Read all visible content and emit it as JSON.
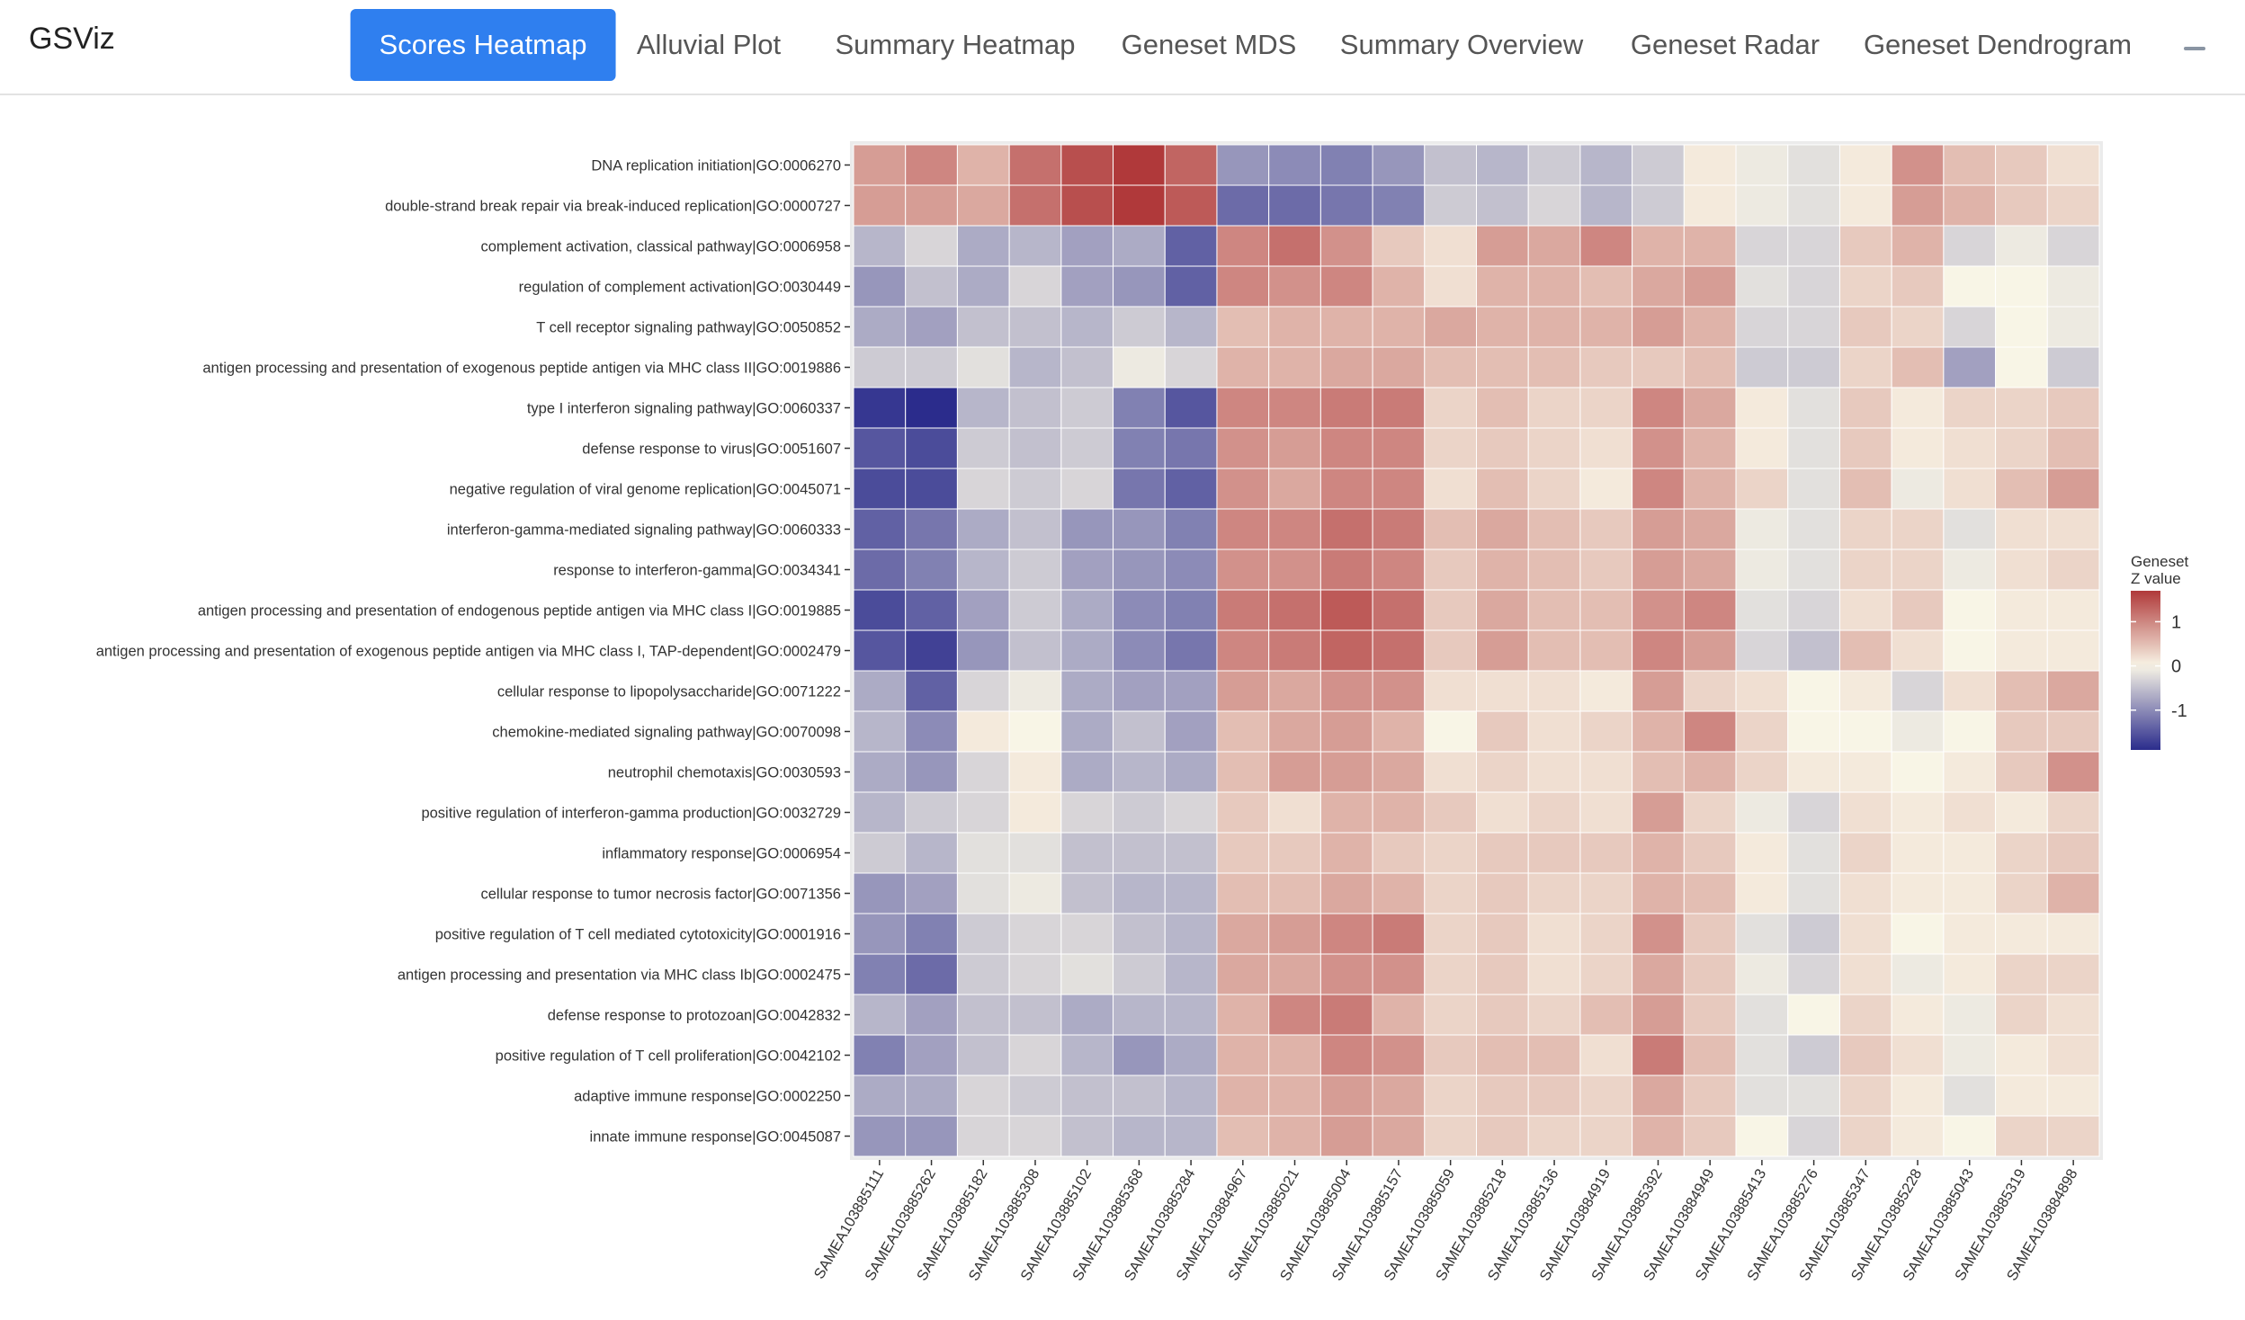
{
  "nav": {
    "brand": "GSViz",
    "tabs": [
      "Scores Heatmap",
      "Alluvial Plot",
      "Summary Heatmap",
      "Geneset MDS",
      "Summary Overview",
      "Geneset Radar",
      "Geneset Dendrogram"
    ],
    "active": 0
  },
  "chart_data": {
    "type": "heatmap",
    "y_categories": [
      "DNA replication initiation|GO:0006270",
      "double-strand break repair via break-induced replication|GO:0000727",
      "complement activation, classical pathway|GO:0006958",
      "regulation of complement activation|GO:0030449",
      "T cell receptor signaling pathway|GO:0050852",
      "antigen processing and presentation of exogenous peptide antigen via MHC class II|GO:0019886",
      "type I interferon signaling pathway|GO:0060337",
      "defense response to virus|GO:0051607",
      "negative regulation of viral genome replication|GO:0045071",
      "interferon-gamma-mediated signaling pathway|GO:0060333",
      "response to interferon-gamma|GO:0034341",
      "antigen processing and presentation of endogenous peptide antigen via MHC class I|GO:0019885",
      "antigen processing and presentation of exogenous peptide antigen via MHC class I, TAP-dependent|GO:0002479",
      "cellular response to lipopolysaccharide|GO:0071222",
      "chemokine-mediated signaling pathway|GO:0070098",
      "neutrophil chemotaxis|GO:0030593",
      "positive regulation of interferon-gamma production|GO:0032729",
      "inflammatory response|GO:0006954",
      "cellular response to tumor necrosis factor|GO:0071356",
      "positive regulation of T cell mediated cytotoxicity|GO:0001916",
      "antigen processing and presentation via MHC class Ib|GO:0002475",
      "defense response to protozoan|GO:0042832",
      "positive regulation of T cell proliferation|GO:0042102",
      "adaptive immune response|GO:0002250",
      "innate immune response|GO:0045087"
    ],
    "x_categories": [
      "SAMEA103885111",
      "SAMEA103885262",
      "SAMEA103885182",
      "SAMEA103885308",
      "SAMEA103885102",
      "SAMEA103885368",
      "SAMEA103885284",
      "SAMEA103884967",
      "SAMEA103885021",
      "SAMEA103885004",
      "SAMEA103885157",
      "SAMEA103885059",
      "SAMEA103885218",
      "SAMEA103885136",
      "SAMEA103884919",
      "SAMEA103885392",
      "SAMEA103884949",
      "SAMEA103885413",
      "SAMEA103885276",
      "SAMEA103885347",
      "SAMEA103885228",
      "SAMEA103885043",
      "SAMEA103885319",
      "SAMEA103884898"
    ],
    "values": [
      [
        0.8,
        1.0,
        0.6,
        1.2,
        1.5,
        1.7,
        1.3,
        -0.9,
        -1.0,
        -1.1,
        -0.9,
        -0.5,
        -0.6,
        -0.4,
        -0.6,
        -0.4,
        0.1,
        -0.1,
        -0.2,
        0.1,
        0.9,
        0.5,
        0.4,
        0.2
      ],
      [
        0.8,
        0.8,
        0.7,
        1.2,
        1.5,
        1.7,
        1.4,
        -1.3,
        -1.3,
        -1.2,
        -1.1,
        -0.4,
        -0.5,
        -0.3,
        -0.6,
        -0.4,
        0.1,
        -0.1,
        -0.2,
        0.1,
        0.8,
        0.6,
        0.4,
        0.3
      ],
      [
        -0.6,
        -0.3,
        -0.7,
        -0.6,
        -0.8,
        -0.7,
        -1.4,
        1.0,
        1.2,
        0.9,
        0.4,
        0.2,
        0.8,
        0.7,
        1.0,
        0.6,
        0.6,
        -0.3,
        -0.3,
        0.4,
        0.6,
        -0.3,
        -0.1,
        -0.3
      ],
      [
        -0.9,
        -0.5,
        -0.7,
        -0.3,
        -0.8,
        -0.9,
        -1.4,
        1.0,
        0.9,
        1.0,
        0.6,
        0.2,
        0.6,
        0.6,
        0.5,
        0.7,
        0.8,
        -0.2,
        -0.3,
        0.3,
        0.4,
        0.0,
        0.0,
        -0.1
      ],
      [
        -0.7,
        -0.8,
        -0.5,
        -0.5,
        -0.6,
        -0.4,
        -0.6,
        0.5,
        0.6,
        0.6,
        0.6,
        0.7,
        0.6,
        0.6,
        0.6,
        0.8,
        0.6,
        -0.3,
        -0.3,
        0.4,
        0.3,
        -0.3,
        0.0,
        -0.1
      ],
      [
        -0.4,
        -0.4,
        -0.2,
        -0.6,
        -0.5,
        -0.1,
        -0.3,
        0.6,
        0.6,
        0.7,
        0.7,
        0.5,
        0.5,
        0.5,
        0.4,
        0.4,
        0.5,
        -0.4,
        -0.4,
        0.3,
        0.5,
        -0.8,
        0.0,
        -0.4
      ],
      [
        -1.8,
        -2.0,
        -0.6,
        -0.5,
        -0.4,
        -1.1,
        -1.5,
        1.0,
        1.0,
        1.1,
        1.1,
        0.3,
        0.5,
        0.3,
        0.3,
        1.0,
        0.7,
        0.1,
        -0.2,
        0.4,
        0.1,
        0.3,
        0.3,
        0.4
      ],
      [
        -1.5,
        -1.6,
        -0.4,
        -0.5,
        -0.4,
        -1.1,
        -1.2,
        0.9,
        0.8,
        1.0,
        1.0,
        0.3,
        0.4,
        0.3,
        0.2,
        0.9,
        0.6,
        0.1,
        -0.2,
        0.4,
        0.1,
        0.2,
        0.3,
        0.5
      ],
      [
        -1.6,
        -1.6,
        -0.3,
        -0.4,
        -0.3,
        -1.2,
        -1.4,
        0.9,
        0.7,
        1.0,
        1.0,
        0.2,
        0.5,
        0.3,
        0.1,
        1.0,
        0.6,
        0.3,
        -0.2,
        0.5,
        -0.1,
        0.2,
        0.5,
        0.8
      ],
      [
        -1.4,
        -1.2,
        -0.7,
        -0.5,
        -0.9,
        -0.9,
        -1.1,
        1.0,
        1.0,
        1.2,
        1.1,
        0.5,
        0.7,
        0.5,
        0.4,
        0.8,
        0.7,
        -0.1,
        -0.2,
        0.3,
        0.3,
        -0.2,
        0.2,
        0.2
      ],
      [
        -1.3,
        -1.1,
        -0.6,
        -0.4,
        -0.8,
        -0.9,
        -1.0,
        0.9,
        0.9,
        1.1,
        1.0,
        0.4,
        0.6,
        0.5,
        0.4,
        0.8,
        0.7,
        -0.1,
        -0.2,
        0.3,
        0.3,
        -0.1,
        0.2,
        0.3
      ],
      [
        -1.6,
        -1.4,
        -0.8,
        -0.4,
        -0.7,
        -1.0,
        -1.1,
        1.1,
        1.2,
        1.4,
        1.2,
        0.4,
        0.7,
        0.5,
        0.5,
        0.9,
        1.0,
        -0.2,
        -0.3,
        0.2,
        0.4,
        0.0,
        0.1,
        0.1
      ],
      [
        -1.5,
        -1.7,
        -0.9,
        -0.5,
        -0.7,
        -1.0,
        -1.2,
        1.0,
        1.1,
        1.3,
        1.2,
        0.4,
        0.8,
        0.5,
        0.5,
        1.0,
        0.8,
        -0.3,
        -0.5,
        0.5,
        0.2,
        0.0,
        0.1,
        0.1
      ],
      [
        -0.7,
        -1.4,
        -0.3,
        -0.1,
        -0.7,
        -0.8,
        -0.8,
        0.8,
        0.7,
        0.9,
        0.9,
        0.2,
        0.2,
        0.2,
        0.1,
        0.8,
        0.3,
        0.2,
        0.0,
        0.1,
        -0.3,
        0.2,
        0.5,
        0.7
      ],
      [
        -0.6,
        -1.0,
        0.1,
        0.0,
        -0.7,
        -0.5,
        -0.8,
        0.5,
        0.7,
        0.8,
        0.6,
        0.0,
        0.4,
        0.2,
        0.3,
        0.6,
        1.0,
        0.3,
        0.0,
        0.0,
        -0.1,
        0.0,
        0.4,
        0.4
      ],
      [
        -0.7,
        -0.9,
        -0.3,
        0.1,
        -0.7,
        -0.6,
        -0.7,
        0.5,
        0.8,
        0.8,
        0.7,
        0.2,
        0.3,
        0.2,
        0.2,
        0.5,
        0.6,
        0.3,
        0.1,
        0.1,
        0.0,
        0.1,
        0.4,
        0.9
      ],
      [
        -0.6,
        -0.4,
        -0.3,
        0.1,
        -0.3,
        -0.4,
        -0.3,
        0.4,
        0.2,
        0.6,
        0.6,
        0.4,
        0.2,
        0.3,
        0.2,
        0.8,
        0.3,
        -0.1,
        -0.3,
        0.2,
        0.1,
        0.2,
        0.1,
        0.3
      ],
      [
        -0.4,
        -0.6,
        -0.2,
        -0.2,
        -0.5,
        -0.5,
        -0.5,
        0.4,
        0.4,
        0.6,
        0.4,
        0.3,
        0.4,
        0.4,
        0.4,
        0.6,
        0.4,
        0.1,
        -0.2,
        0.3,
        0.1,
        0.1,
        0.3,
        0.4
      ],
      [
        -0.9,
        -0.8,
        -0.2,
        -0.1,
        -0.5,
        -0.6,
        -0.6,
        0.5,
        0.5,
        0.7,
        0.6,
        0.3,
        0.4,
        0.3,
        0.3,
        0.6,
        0.5,
        0.1,
        -0.2,
        0.2,
        0.1,
        0.1,
        0.3,
        0.6
      ],
      [
        -0.9,
        -1.1,
        -0.4,
        -0.3,
        -0.3,
        -0.5,
        -0.6,
        0.7,
        0.8,
        1.0,
        1.1,
        0.3,
        0.4,
        0.2,
        0.3,
        0.9,
        0.4,
        -0.2,
        -0.4,
        0.2,
        0.0,
        0.1,
        0.1,
        0.1
      ],
      [
        -1.1,
        -1.3,
        -0.4,
        -0.3,
        -0.2,
        -0.4,
        -0.6,
        0.7,
        0.7,
        0.9,
        0.9,
        0.3,
        0.4,
        0.2,
        0.3,
        0.7,
        0.4,
        -0.1,
        -0.3,
        0.2,
        -0.1,
        0.1,
        0.3,
        0.3
      ],
      [
        -0.6,
        -0.8,
        -0.5,
        -0.5,
        -0.7,
        -0.6,
        -0.6,
        0.6,
        1.0,
        1.1,
        0.6,
        0.3,
        0.4,
        0.3,
        0.5,
        0.8,
        0.4,
        -0.2,
        0.0,
        0.3,
        0.1,
        -0.1,
        0.3,
        0.2
      ],
      [
        -1.1,
        -0.8,
        -0.5,
        -0.3,
        -0.6,
        -0.9,
        -0.7,
        0.6,
        0.6,
        1.0,
        0.9,
        0.4,
        0.5,
        0.5,
        0.2,
        1.1,
        0.5,
        -0.2,
        -0.4,
        0.4,
        0.2,
        -0.1,
        0.1,
        0.2
      ],
      [
        -0.7,
        -0.7,
        -0.3,
        -0.4,
        -0.5,
        -0.5,
        -0.6,
        0.6,
        0.6,
        0.8,
        0.7,
        0.3,
        0.4,
        0.4,
        0.3,
        0.7,
        0.4,
        -0.2,
        -0.2,
        0.3,
        0.1,
        -0.2,
        0.1,
        0.1
      ],
      [
        -0.9,
        -0.9,
        -0.3,
        -0.3,
        -0.5,
        -0.6,
        -0.6,
        0.5,
        0.6,
        0.8,
        0.7,
        0.3,
        0.4,
        0.3,
        0.3,
        0.6,
        0.4,
        0.0,
        -0.3,
        0.3,
        0.1,
        0.0,
        0.3,
        0.3
      ]
    ],
    "legend_title": [
      "Geneset",
      "Z value"
    ],
    "color_lim": [
      -1.9,
      1.7
    ],
    "color_ticks": [
      -1,
      0,
      1
    ],
    "colors": [
      "#2b2c8c",
      "#f8f5e6",
      "#b0393a"
    ]
  }
}
